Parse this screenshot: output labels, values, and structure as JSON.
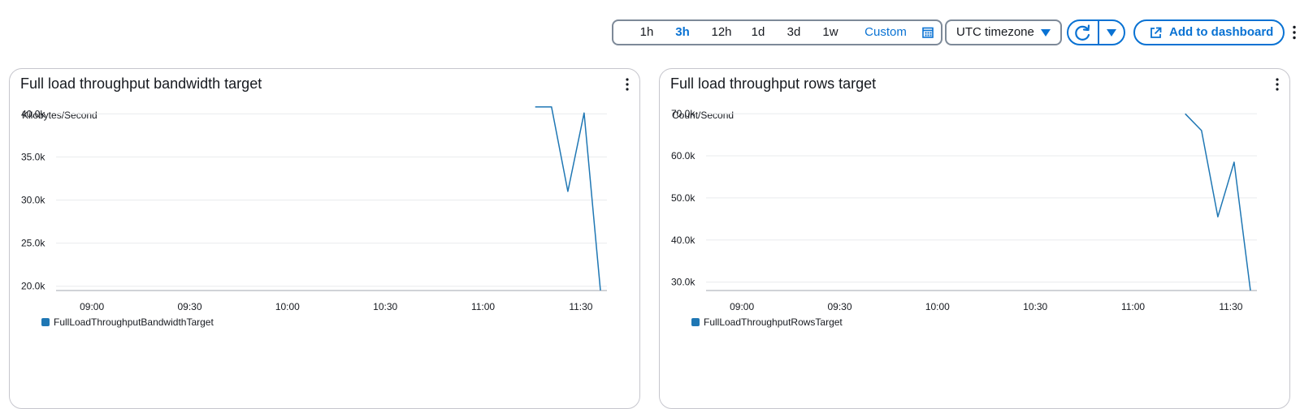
{
  "toolbar": {
    "ranges": [
      "1h",
      "3h",
      "12h",
      "1d",
      "3d",
      "1w"
    ],
    "active_range": "3h",
    "custom_label": "Custom",
    "timezone_label": "UTC timezone",
    "add_label": "Add to dashboard",
    "icons": {
      "calendar": "calendar-icon",
      "caret": "caret-down-icon",
      "refresh": "refresh-icon",
      "external": "external-link-icon",
      "more": "more-vertical-icon"
    }
  },
  "colors": {
    "accent": "#0972d3",
    "series": "#1f77b4",
    "grid": "#e9ebed",
    "border": "#7d8998"
  },
  "chart_data": [
    {
      "type": "line",
      "title": "Full load throughput bandwidth target",
      "ylabel": "Kilobytes/Second",
      "ylim": [
        19500,
        40500
      ],
      "yticks": [
        20000,
        25000,
        30000,
        35000,
        40000
      ],
      "ytick_labels": [
        "20.0k",
        "25.0k",
        "30.0k",
        "35.0k",
        "40.0k"
      ],
      "xlim": [
        "08:49",
        "11:38"
      ],
      "xticks": [
        "09:00",
        "09:30",
        "10:00",
        "10:30",
        "11:00",
        "11:30"
      ],
      "series": [
        {
          "name": "FullLoadThroughputBandwidthTarget",
          "x": [
            "11:16",
            "11:21",
            "11:26",
            "11:31",
            "11:36"
          ],
          "values": [
            40800,
            40800,
            31000,
            40100,
            19500
          ]
        }
      ]
    },
    {
      "type": "line",
      "title": "Full load throughput rows target",
      "ylabel": "Count/Second",
      "ylim": [
        28000,
        71000
      ],
      "yticks": [
        30000,
        40000,
        50000,
        60000,
        70000
      ],
      "ytick_labels": [
        "30.0k",
        "40.0k",
        "50.0k",
        "60.0k",
        "70.0k"
      ],
      "xlim": [
        "08:49",
        "11:38"
      ],
      "xticks": [
        "09:00",
        "09:30",
        "10:00",
        "10:30",
        "11:00",
        "11:30"
      ],
      "series": [
        {
          "name": "FullLoadThroughputRowsTarget",
          "x": [
            "11:16",
            "11:21",
            "11:26",
            "11:31",
            "11:36"
          ],
          "values": [
            70000,
            66000,
            45500,
            58500,
            28000
          ]
        }
      ]
    }
  ]
}
